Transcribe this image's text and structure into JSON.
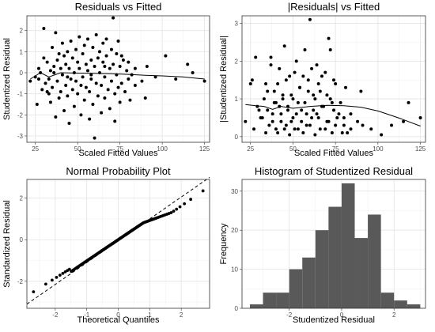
{
  "chart_data": [
    {
      "type": "scatter",
      "title": "Residuals vs Fitted",
      "xlabel": "Scaled Fitted Values",
      "ylabel": "Studentized Residual",
      "xlim": [
        20,
        128
      ],
      "ylim": [
        -3.3,
        2.7
      ],
      "xticks": [
        25,
        50,
        75,
        100,
        125
      ],
      "yticks": [
        -3,
        -2,
        -1,
        0,
        1,
        2
      ],
      "grid": true,
      "points": [
        [
          22,
          -0.4
        ],
        [
          25,
          -0.2
        ],
        [
          26,
          -1.5
        ],
        [
          27,
          0.2
        ],
        [
          28,
          0.0
        ],
        [
          29,
          -0.8
        ],
        [
          30,
          2.1
        ],
        [
          30,
          0.7
        ],
        [
          31,
          -0.5
        ],
        [
          32,
          0.5
        ],
        [
          33,
          -0.3
        ],
        [
          33,
          -1.0
        ],
        [
          34,
          0.1
        ],
        [
          34,
          -1.4
        ],
        [
          35,
          1.2
        ],
        [
          35,
          -0.7
        ],
        [
          36,
          0.3
        ],
        [
          36,
          0.0
        ],
        [
          37,
          -2.1
        ],
        [
          37,
          1.9
        ],
        [
          38,
          0.6
        ],
        [
          38,
          -0.4
        ],
        [
          39,
          0.9
        ],
        [
          39,
          -1.2
        ],
        [
          40,
          0.2
        ],
        [
          40,
          -0.9
        ],
        [
          41,
          1.4
        ],
        [
          41,
          -0.1
        ],
        [
          42,
          0.8
        ],
        [
          42,
          -1.8
        ],
        [
          43,
          0.4
        ],
        [
          43,
          -0.6
        ],
        [
          44,
          1.0
        ],
        [
          44,
          -1.1
        ],
        [
          45,
          0.2
        ],
        [
          45,
          -2.4
        ],
        [
          46,
          1.5
        ],
        [
          46,
          -0.3
        ],
        [
          47,
          0.7
        ],
        [
          47,
          -0.8
        ],
        [
          48,
          0.0
        ],
        [
          48,
          -1.6
        ],
        [
          49,
          1.1
        ],
        [
          49,
          -0.4
        ],
        [
          50,
          0.5
        ],
        [
          50,
          -1.0
        ],
        [
          51,
          1.7
        ],
        [
          51,
          0.2
        ],
        [
          52,
          -0.6
        ],
        [
          52,
          -2.0
        ],
        [
          53,
          0.9
        ],
        [
          53,
          -0.2
        ],
        [
          54,
          1.3
        ],
        [
          54,
          -1.3
        ],
        [
          55,
          0.4
        ],
        [
          55,
          -0.7
        ],
        [
          56,
          1.6
        ],
        [
          56,
          0.1
        ],
        [
          57,
          -0.9
        ],
        [
          57,
          -2.2
        ],
        [
          58,
          0.6
        ],
        [
          58,
          -0.3
        ],
        [
          59,
          1.2
        ],
        [
          59,
          -1.5
        ],
        [
          60,
          0.3
        ],
        [
          60,
          -3.1
        ],
        [
          61,
          1.8
        ],
        [
          61,
          -0.5
        ],
        [
          62,
          0.7
        ],
        [
          62,
          -1.1
        ],
        [
          63,
          0.0
        ],
        [
          63,
          1.0
        ],
        [
          64,
          -0.6
        ],
        [
          64,
          -1.9
        ],
        [
          65,
          0.5
        ],
        [
          65,
          1.4
        ],
        [
          66,
          -0.2
        ],
        [
          66,
          -1.2
        ],
        [
          67,
          0.8
        ],
        [
          67,
          1.6
        ],
        [
          68,
          -0.8
        ],
        [
          69,
          0.2
        ],
        [
          69,
          -1.7
        ],
        [
          70,
          1.1
        ],
        [
          70,
          -0.4
        ],
        [
          71,
          2.6
        ],
        [
          71,
          0.4
        ],
        [
          72,
          -1.0
        ],
        [
          72,
          -2.3
        ],
        [
          73,
          0.9
        ],
        [
          73,
          -0.1
        ],
        [
          74,
          1.5
        ],
        [
          74,
          -0.7
        ],
        [
          75,
          0.3
        ],
        [
          75,
          -1.4
        ],
        [
          76,
          -0.5
        ],
        [
          77,
          0.6
        ],
        [
          78,
          -0.9
        ],
        [
          79,
          0.1
        ],
        [
          80,
          -0.3
        ],
        [
          80,
          0.5
        ],
        [
          81,
          -1.3
        ],
        [
          82,
          -0.1
        ],
        [
          84,
          0.2
        ],
        [
          84,
          -0.6
        ],
        [
          88,
          -0.4
        ],
        [
          90,
          -1.2
        ],
        [
          91,
          0.3
        ],
        [
          96,
          -0.2
        ],
        [
          102,
          0.8
        ],
        [
          108,
          -0.3
        ],
        [
          115,
          0.4
        ],
        [
          118,
          0.0
        ],
        [
          125,
          -0.4
        ],
        [
          27,
          -0.3
        ],
        [
          32,
          -0.9
        ],
        [
          44,
          -0.2
        ],
        [
          58,
          -0.1
        ],
        [
          66,
          0.3
        ],
        [
          76,
          0.8
        ]
      ],
      "smooth": [
        [
          22,
          -0.3
        ],
        [
          28,
          0.0
        ],
        [
          33,
          -0.2
        ],
        [
          40,
          0.0
        ],
        [
          50,
          -0.02
        ],
        [
          60,
          -0.03
        ],
        [
          70,
          -0.05
        ],
        [
          80,
          -0.08
        ],
        [
          90,
          -0.12
        ],
        [
          100,
          -0.15
        ],
        [
          112,
          -0.2
        ],
        [
          125,
          -0.3
        ]
      ]
    },
    {
      "type": "scatter",
      "title": "|Residuals| vs Fitted",
      "xlabel": "Scaled Fitted Values",
      "ylabel": "|Studentized Residual|",
      "xlim": [
        20,
        128
      ],
      "ylim": [
        -0.15,
        3.2
      ],
      "xticks": [
        25,
        50,
        75,
        100,
        125
      ],
      "yticks": [
        0,
        1,
        2,
        3
      ],
      "grid": true,
      "points": [
        [
          22,
          0.4
        ],
        [
          25,
          1.4
        ],
        [
          26,
          1.5
        ],
        [
          27,
          0.2
        ],
        [
          28,
          2.1
        ],
        [
          29,
          0.8
        ],
        [
          30,
          0.7
        ],
        [
          31,
          0.5
        ],
        [
          32,
          0.5
        ],
        [
          33,
          1.0
        ],
        [
          34,
          0.1
        ],
        [
          34,
          1.4
        ],
        [
          35,
          1.2
        ],
        [
          35,
          0.7
        ],
        [
          36,
          0.3
        ],
        [
          37,
          2.1
        ],
        [
          37,
          1.9
        ],
        [
          38,
          0.6
        ],
        [
          38,
          0.4
        ],
        [
          39,
          0.9
        ],
        [
          39,
          1.2
        ],
        [
          40,
          0.2
        ],
        [
          40,
          0.9
        ],
        [
          41,
          1.4
        ],
        [
          41,
          0.1
        ],
        [
          42,
          0.8
        ],
        [
          42,
          1.8
        ],
        [
          43,
          0.4
        ],
        [
          43,
          0.6
        ],
        [
          44,
          1.0
        ],
        [
          44,
          1.1
        ],
        [
          45,
          0.2
        ],
        [
          45,
          2.4
        ],
        [
          46,
          1.5
        ],
        [
          46,
          0.3
        ],
        [
          47,
          0.7
        ],
        [
          47,
          0.8
        ],
        [
          48,
          0.05
        ],
        [
          48,
          1.6
        ],
        [
          49,
          1.1
        ],
        [
          49,
          0.4
        ],
        [
          50,
          0.5
        ],
        [
          50,
          1.0
        ],
        [
          51,
          1.7
        ],
        [
          51,
          0.2
        ],
        [
          52,
          0.6
        ],
        [
          52,
          2.0
        ],
        [
          53,
          0.9
        ],
        [
          53,
          0.2
        ],
        [
          54,
          1.3
        ],
        [
          54,
          1.3
        ],
        [
          55,
          0.4
        ],
        [
          55,
          0.7
        ],
        [
          56,
          1.6
        ],
        [
          56,
          0.1
        ],
        [
          57,
          0.9
        ],
        [
          57,
          2.3
        ],
        [
          58,
          0.6
        ],
        [
          58,
          0.3
        ],
        [
          59,
          1.2
        ],
        [
          59,
          1.5
        ],
        [
          60,
          0.3
        ],
        [
          60,
          3.1
        ],
        [
          61,
          1.8
        ],
        [
          61,
          0.5
        ],
        [
          62,
          0.7
        ],
        [
          62,
          1.1
        ],
        [
          63,
          0.05
        ],
        [
          63,
          1.0
        ],
        [
          64,
          0.6
        ],
        [
          64,
          1.9
        ],
        [
          65,
          0.5
        ],
        [
          65,
          1.4
        ],
        [
          66,
          0.2
        ],
        [
          66,
          1.2
        ],
        [
          67,
          0.8
        ],
        [
          67,
          1.6
        ],
        [
          68,
          0.8
        ],
        [
          69,
          0.2
        ],
        [
          69,
          1.7
        ],
        [
          70,
          1.1
        ],
        [
          70,
          0.4
        ],
        [
          71,
          2.6
        ],
        [
          71,
          0.4
        ],
        [
          72,
          1.0
        ],
        [
          72,
          2.3
        ],
        [
          73,
          0.9
        ],
        [
          73,
          0.1
        ],
        [
          74,
          1.5
        ],
        [
          74,
          0.7
        ],
        [
          75,
          0.3
        ],
        [
          75,
          1.4
        ],
        [
          76,
          0.5
        ],
        [
          77,
          0.6
        ],
        [
          78,
          0.9
        ],
        [
          79,
          0.1
        ],
        [
          80,
          0.3
        ],
        [
          80,
          0.5
        ],
        [
          81,
          1.3
        ],
        [
          82,
          0.1
        ],
        [
          84,
          0.2
        ],
        [
          84,
          0.6
        ],
        [
          88,
          0.4
        ],
        [
          90,
          1.2
        ],
        [
          91,
          0.3
        ],
        [
          96,
          0.2
        ],
        [
          102,
          0.05
        ],
        [
          108,
          0.3
        ],
        [
          115,
          0.4
        ],
        [
          118,
          0.9
        ],
        [
          125,
          0.5
        ]
      ],
      "smooth": [
        [
          22,
          0.85
        ],
        [
          28,
          0.82
        ],
        [
          33,
          0.8
        ],
        [
          38,
          0.72
        ],
        [
          43,
          0.8
        ],
        [
          50,
          0.75
        ],
        [
          60,
          0.8
        ],
        [
          70,
          0.83
        ],
        [
          80,
          0.82
        ],
        [
          90,
          0.78
        ],
        [
          100,
          0.68
        ],
        [
          112,
          0.5
        ],
        [
          125,
          0.28
        ]
      ]
    },
    {
      "type": "scatter",
      "title": "Normal Probability Plot",
      "xlabel": "Theoretical Quantiles",
      "ylabel": "Standardized Residual",
      "xlim": [
        -2.9,
        2.9
      ],
      "ylim": [
        -3.3,
        2.9
      ],
      "xticks": [
        -2,
        -1,
        0,
        1,
        2
      ],
      "yticks": [
        -2,
        0,
        2
      ],
      "grid": true,
      "n_points": 140,
      "reference_line": [
        [
          -2.9,
          -3.1
        ],
        [
          2.9,
          3.0
        ]
      ]
    },
    {
      "type": "bar",
      "title": "Histogram of Studentized Residual",
      "xlabel": "Studentized Residual",
      "ylabel": "Frequency",
      "xlim": [
        -3.8,
        3.2
      ],
      "ylim": [
        0,
        33
      ],
      "xticks": [
        -2,
        0,
        2
      ],
      "yticks": [
        0,
        10,
        20,
        30
      ],
      "grid": true,
      "bins": [
        {
          "x0": -3.5,
          "x1": -3.0,
          "count": 1
        },
        {
          "x0": -3.0,
          "x1": -2.5,
          "count": 4
        },
        {
          "x0": -2.5,
          "x1": -2.0,
          "count": 4
        },
        {
          "x0": -2.0,
          "x1": -1.5,
          "count": 10
        },
        {
          "x0": -1.5,
          "x1": -1.0,
          "count": 13
        },
        {
          "x0": -1.0,
          "x1": -0.5,
          "count": 20
        },
        {
          "x0": -0.5,
          "x1": 0.0,
          "count": 26
        },
        {
          "x0": 0.0,
          "x1": 0.5,
          "count": 32
        },
        {
          "x0": 0.5,
          "x1": 1.0,
          "count": 18
        },
        {
          "x0": 1.0,
          "x1": 1.5,
          "count": 24
        },
        {
          "x0": 1.5,
          "x1": 2.0,
          "count": 4
        },
        {
          "x0": 2.0,
          "x1": 2.5,
          "count": 2
        },
        {
          "x0": 2.5,
          "x1": 3.0,
          "count": 1
        }
      ]
    }
  ]
}
